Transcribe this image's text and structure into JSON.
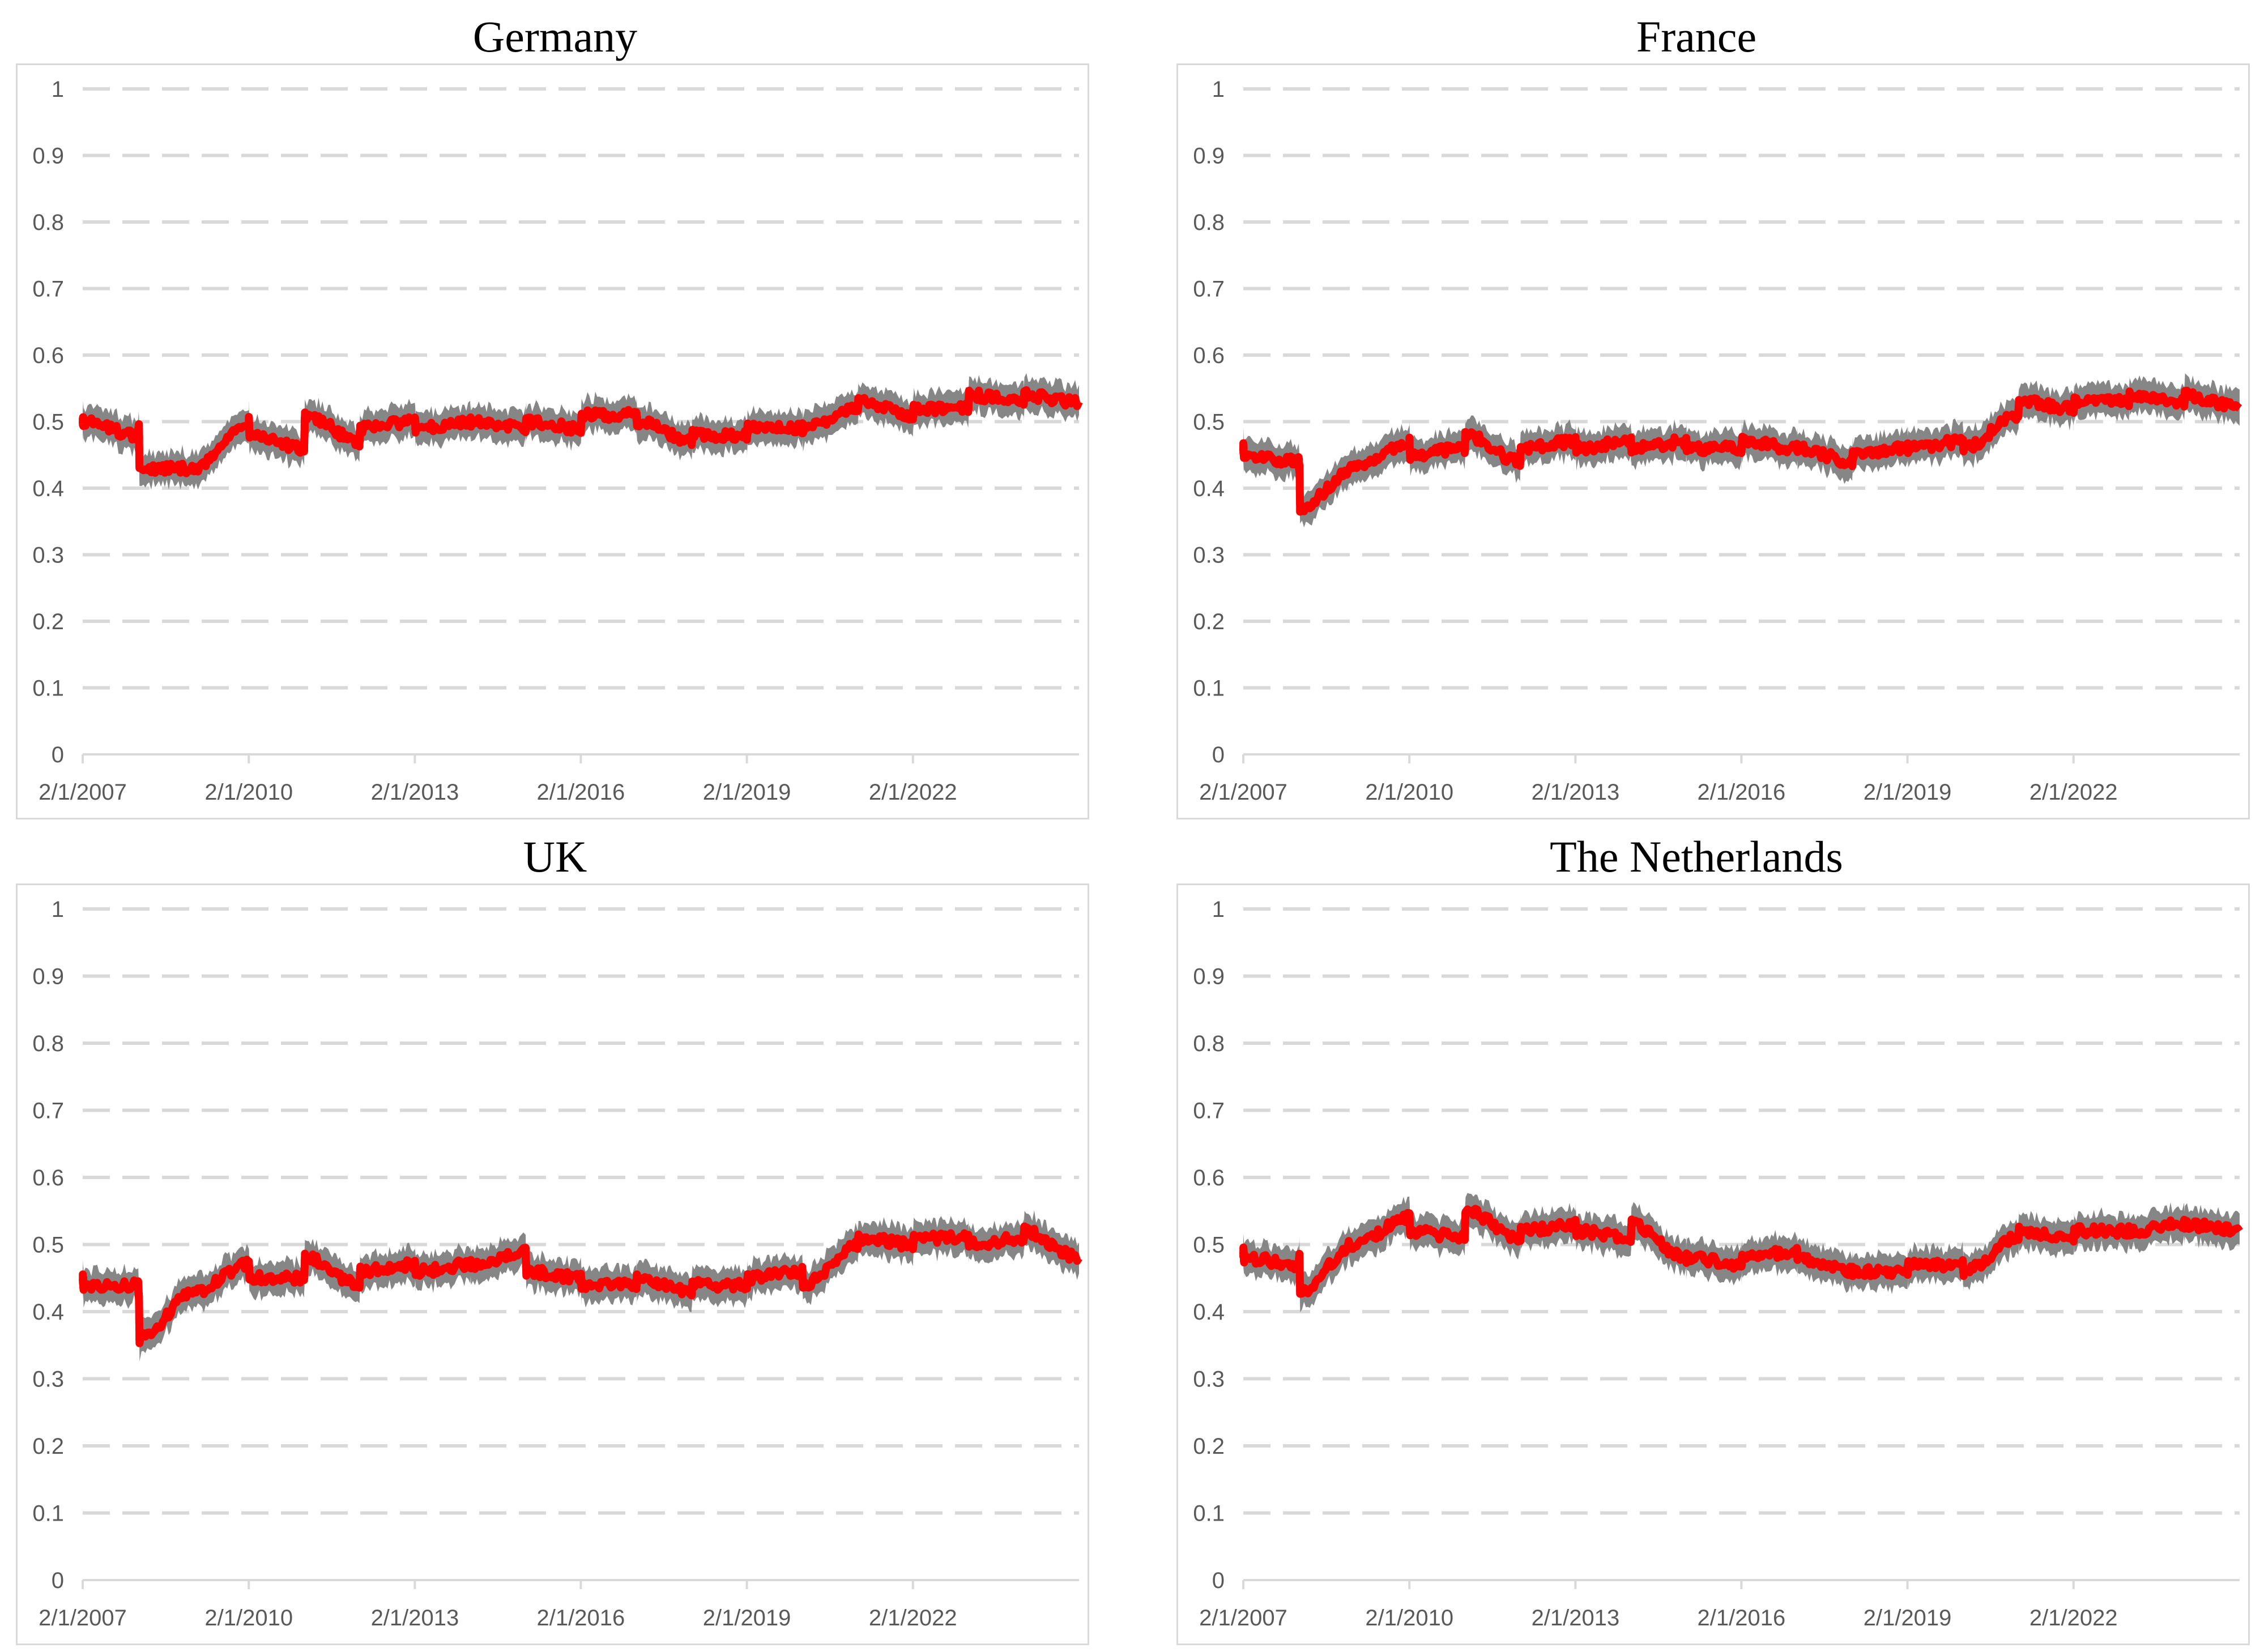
{
  "chart_data": [
    {
      "type": "line",
      "title": "Germany",
      "xlabel": "",
      "ylabel": "",
      "ylim": [
        0,
        1
      ],
      "yticks": [
        "0",
        "0.1",
        "0.2",
        "0.3",
        "0.4",
        "0.5",
        "0.6",
        "0.7",
        "0.8",
        "0.9",
        "1"
      ],
      "xticks": [
        "2/1/2007",
        "2/1/2010",
        "2/1/2013",
        "2/1/2016",
        "2/1/2019",
        "2/1/2022"
      ],
      "x_start": "2/1/2007",
      "x_end": "2/1/2025",
      "grid": "horizontal dashed",
      "series": [
        {
          "color": "#ff0000",
          "band_color": "#808080",
          "x": [
            "2/1/2007",
            "8/1/2007",
            "2/1/2008",
            "8/1/2008",
            "12/1/2008",
            "6/1/2009",
            "2/1/2010",
            "8/1/2010",
            "2/1/2011",
            "8/1/2011",
            "2/1/2012",
            "8/1/2012",
            "2/1/2013",
            "8/1/2013",
            "2/1/2014",
            "8/1/2014",
            "2/1/2015",
            "8/1/2015",
            "2/1/2016",
            "8/1/2016",
            "2/1/2017",
            "8/1/2017",
            "2/1/2018",
            "8/1/2018",
            "2/1/2019",
            "8/1/2019",
            "2/1/2020",
            "8/1/2020",
            "2/1/2021",
            "8/1/2021",
            "2/1/2022",
            "8/1/2022",
            "2/1/2023",
            "8/1/2023",
            "2/1/2024",
            "8/1/2024",
            "2/1/2025"
          ],
          "values": [
            0.5,
            0.5,
            0.48,
            0.49,
            0.43,
            0.43,
            0.5,
            0.48,
            0.46,
            0.51,
            0.47,
            0.49,
            0.5,
            0.49,
            0.5,
            0.5,
            0.49,
            0.5,
            0.49,
            0.51,
            0.51,
            0.5,
            0.47,
            0.48,
            0.48,
            0.49,
            0.49,
            0.49,
            0.52,
            0.53,
            0.51,
            0.52,
            0.52,
            0.54,
            0.53,
            0.54,
            0.53
          ],
          "band": 0.02
        }
      ]
    },
    {
      "type": "line",
      "title": "France",
      "xlabel": "",
      "ylabel": "",
      "ylim": [
        0,
        1
      ],
      "yticks": [
        "0",
        "0.1",
        "0.2",
        "0.3",
        "0.4",
        "0.5",
        "0.6",
        "0.7",
        "0.8",
        "0.9",
        "1"
      ],
      "xticks": [
        "2/1/2007",
        "2/1/2010",
        "2/1/2013",
        "2/1/2016",
        "2/1/2019",
        "2/1/2022"
      ],
      "x_start": "2/1/2007",
      "x_end": "2/1/2025",
      "grid": "horizontal dashed",
      "series": [
        {
          "color": "#ff0000",
          "band_color": "#808080",
          "x": [
            "2/1/2007",
            "8/1/2007",
            "2/1/2008",
            "8/1/2008",
            "12/1/2008",
            "6/1/2009",
            "2/1/2010",
            "8/1/2010",
            "2/1/2011",
            "8/1/2011",
            "2/1/2012",
            "8/1/2012",
            "2/1/2013",
            "8/1/2013",
            "2/1/2014",
            "8/1/2014",
            "2/1/2015",
            "8/1/2015",
            "2/1/2016",
            "8/1/2016",
            "2/1/2017",
            "8/1/2017",
            "2/1/2018",
            "8/1/2018",
            "2/1/2019",
            "8/1/2019",
            "2/1/2020",
            "8/1/2020",
            "2/1/2021",
            "8/1/2021",
            "2/1/2022",
            "8/1/2022",
            "2/1/2023",
            "8/1/2023",
            "2/1/2024",
            "8/1/2024",
            "2/1/2025"
          ],
          "values": [
            0.46,
            0.45,
            0.44,
            0.43,
            0.37,
            0.43,
            0.47,
            0.45,
            0.46,
            0.48,
            0.44,
            0.46,
            0.47,
            0.46,
            0.47,
            0.46,
            0.47,
            0.46,
            0.46,
            0.47,
            0.46,
            0.46,
            0.44,
            0.45,
            0.46,
            0.46,
            0.47,
            0.46,
            0.51,
            0.53,
            0.52,
            0.53,
            0.53,
            0.54,
            0.53,
            0.54,
            0.52
          ],
          "band": 0.02
        }
      ]
    },
    {
      "type": "line",
      "title": "UK",
      "xlabel": "",
      "ylabel": "",
      "ylim": [
        0,
        1
      ],
      "yticks": [
        "0",
        "0.1",
        "0.2",
        "0.3",
        "0.4",
        "0.5",
        "0.6",
        "0.7",
        "0.8",
        "0.9",
        "1"
      ],
      "xticks": [
        "2/1/2007",
        "2/1/2010",
        "2/1/2013",
        "2/1/2016",
        "2/1/2019",
        "2/1/2022"
      ],
      "x_start": "2/1/2007",
      "x_end": "2/1/2025",
      "grid": "horizontal dashed",
      "series": [
        {
          "color": "#ff0000",
          "band_color": "#808080",
          "x": [
            "2/1/2007",
            "8/1/2007",
            "2/1/2008",
            "8/1/2008",
            "12/1/2008",
            "6/1/2009",
            "2/1/2010",
            "8/1/2010",
            "2/1/2011",
            "8/1/2011",
            "2/1/2012",
            "8/1/2012",
            "2/1/2013",
            "8/1/2013",
            "2/1/2014",
            "8/1/2014",
            "2/1/2015",
            "8/1/2015",
            "2/1/2016",
            "8/1/2016",
            "2/1/2017",
            "8/1/2017",
            "2/1/2018",
            "8/1/2018",
            "2/1/2019",
            "8/1/2019",
            "2/1/2020",
            "8/1/2020",
            "2/1/2021",
            "8/1/2021",
            "2/1/2022",
            "8/1/2022",
            "2/1/2023",
            "8/1/2023",
            "2/1/2024",
            "8/1/2024",
            "2/1/2025"
          ],
          "values": [
            0.45,
            0.44,
            0.44,
            0.42,
            0.36,
            0.43,
            0.47,
            0.45,
            0.45,
            0.48,
            0.44,
            0.46,
            0.47,
            0.46,
            0.47,
            0.47,
            0.49,
            0.46,
            0.45,
            0.44,
            0.44,
            0.45,
            0.43,
            0.44,
            0.44,
            0.45,
            0.46,
            0.44,
            0.5,
            0.51,
            0.5,
            0.51,
            0.51,
            0.5,
            0.51,
            0.52,
            0.48
          ],
          "band": 0.02
        }
      ]
    },
    {
      "type": "line",
      "title": "The Netherlands",
      "xlabel": "",
      "ylabel": "",
      "ylim": [
        0,
        1
      ],
      "yticks": [
        "0",
        "0.1",
        "0.2",
        "0.3",
        "0.4",
        "0.5",
        "0.6",
        "0.7",
        "0.8",
        "0.9",
        "1"
      ],
      "xticks": [
        "2/1/2007",
        "2/1/2010",
        "2/1/2013",
        "2/1/2016",
        "2/1/2019",
        "2/1/2022"
      ],
      "x_start": "2/1/2007",
      "x_end": "2/1/2025",
      "grid": "horizontal dashed",
      "series": [
        {
          "color": "#ff0000",
          "band_color": "#808080",
          "x": [
            "2/1/2007",
            "8/1/2007",
            "2/1/2008",
            "8/1/2008",
            "12/1/2008",
            "6/1/2009",
            "2/1/2010",
            "8/1/2010",
            "2/1/2011",
            "8/1/2011",
            "2/1/2012",
            "8/1/2012",
            "2/1/2013",
            "8/1/2013",
            "2/1/2014",
            "8/1/2014",
            "2/1/2015",
            "8/1/2015",
            "2/1/2016",
            "8/1/2016",
            "2/1/2017",
            "8/1/2017",
            "2/1/2018",
            "8/1/2018",
            "2/1/2019",
            "8/1/2019",
            "2/1/2020",
            "8/1/2020",
            "2/1/2021",
            "8/1/2021",
            "2/1/2022",
            "8/1/2022",
            "2/1/2023",
            "8/1/2023",
            "2/1/2024",
            "8/1/2024",
            "2/1/2025"
          ],
          "values": [
            0.49,
            0.48,
            0.47,
            0.48,
            0.43,
            0.5,
            0.54,
            0.52,
            0.51,
            0.55,
            0.51,
            0.52,
            0.53,
            0.52,
            0.51,
            0.53,
            0.48,
            0.48,
            0.47,
            0.48,
            0.49,
            0.48,
            0.46,
            0.46,
            0.46,
            0.47,
            0.47,
            0.46,
            0.51,
            0.52,
            0.51,
            0.52,
            0.52,
            0.52,
            0.53,
            0.53,
            0.52
          ],
          "band": 0.02
        }
      ]
    }
  ]
}
